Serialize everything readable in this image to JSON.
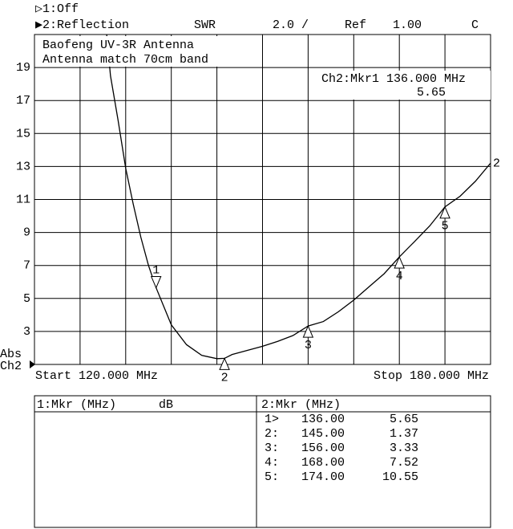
{
  "header": {
    "ch1": "▷1:Off",
    "ch2": "▶2:Reflection",
    "format": "SWR",
    "scale": "2.0 /",
    "ref_label": "Ref",
    "ref_value": "1.00",
    "mode": "C"
  },
  "annotations": {
    "line1": "Baofeng UV-3R Antenna",
    "line2": "Antenna match 70cm band",
    "marker_readout": "Ch2:Mkr1  136.000 MHz",
    "marker_value": "5.65",
    "abs": "Abs",
    "ch": "Ch2",
    "start": "Start 120.000 MHz",
    "stop": "Stop 180.000 MHz"
  },
  "chart_data": {
    "type": "line",
    "x": [
      129.5,
      130,
      131,
      132,
      133,
      134,
      135,
      136,
      138,
      140,
      142,
      144,
      145,
      146,
      148,
      150,
      152,
      154,
      156,
      158,
      160,
      162,
      164,
      166,
      168,
      170,
      172,
      174,
      176,
      178,
      180
    ],
    "series": [
      {
        "name": "2",
        "color": "#000000",
        "values": [
          21,
          18.5,
          15.8,
          12.9,
          10.7,
          8.7,
          7.0,
          5.65,
          3.4,
          2.2,
          1.55,
          1.35,
          1.37,
          1.6,
          1.85,
          2.1,
          2.4,
          2.75,
          3.33,
          3.6,
          4.2,
          4.9,
          5.7,
          6.5,
          7.52,
          8.45,
          9.4,
          10.55,
          11.2,
          12.1,
          13.2
        ]
      }
    ],
    "markers": {
      "labels": [
        "1",
        "2",
        "3",
        "4",
        "5"
      ],
      "x": [
        136,
        145,
        156,
        168,
        174
      ],
      "values": [
        5.65,
        1.37,
        3.33,
        7.52,
        10.55
      ]
    },
    "xlim": [
      120,
      180
    ],
    "xticks": [
      126,
      132,
      138,
      144,
      150,
      156,
      162,
      168,
      174
    ],
    "ylim": [
      1,
      21
    ],
    "yticks": [
      3,
      5,
      7,
      9,
      11,
      13,
      15,
      17,
      19
    ],
    "grid": true
  },
  "marker_table": {
    "left_header": [
      "1:Mkr (MHz)",
      "dB"
    ],
    "right_header": "2:Mkr (MHz)",
    "rows": [
      [
        "1>",
        "136.00",
        "5.65"
      ],
      [
        "2:",
        "145.00",
        "1.37"
      ],
      [
        "3:",
        "156.00",
        "3.33"
      ],
      [
        "4:",
        "168.00",
        "7.52"
      ],
      [
        "5:",
        "174.00",
        "10.55"
      ]
    ]
  }
}
